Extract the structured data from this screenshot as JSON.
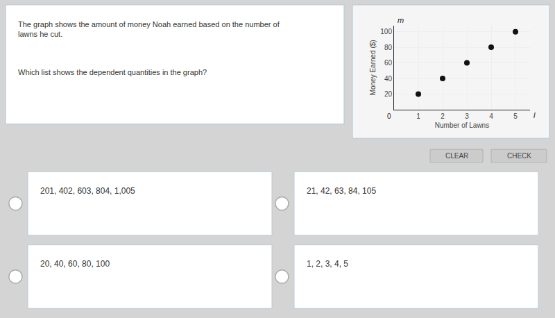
{
  "chart_data": {
    "type": "scatter",
    "title": "The graph shows the amount of money Noah earned based on the number of lawns he cut.",
    "subtitle": "Which list shows the dependent quantities in the graph?",
    "xlabel": "Number of Lawns",
    "ylabel": "Money Earned ($)",
    "x": [
      1,
      2,
      3,
      4,
      5
    ],
    "values": [
      20,
      40,
      60,
      80,
      100
    ],
    "color": "#111111",
    "xlim": [
      0,
      5.6
    ],
    "ylim": [
      0,
      108
    ],
    "xticks": [
      1,
      2,
      3,
      4,
      5
    ],
    "yticks": [
      20,
      40,
      60,
      80,
      100
    ],
    "grid": true,
    "annotations": [
      "l",
      "m",
      "0",
      "201, 402, 603, 804, 1,005",
      "21, 42, 63, 84, 105",
      "20, 40, 60, 80, 100",
      "1, 2, 3, 4, 5",
      "CLEAR",
      "CHECK"
    ]
  }
}
